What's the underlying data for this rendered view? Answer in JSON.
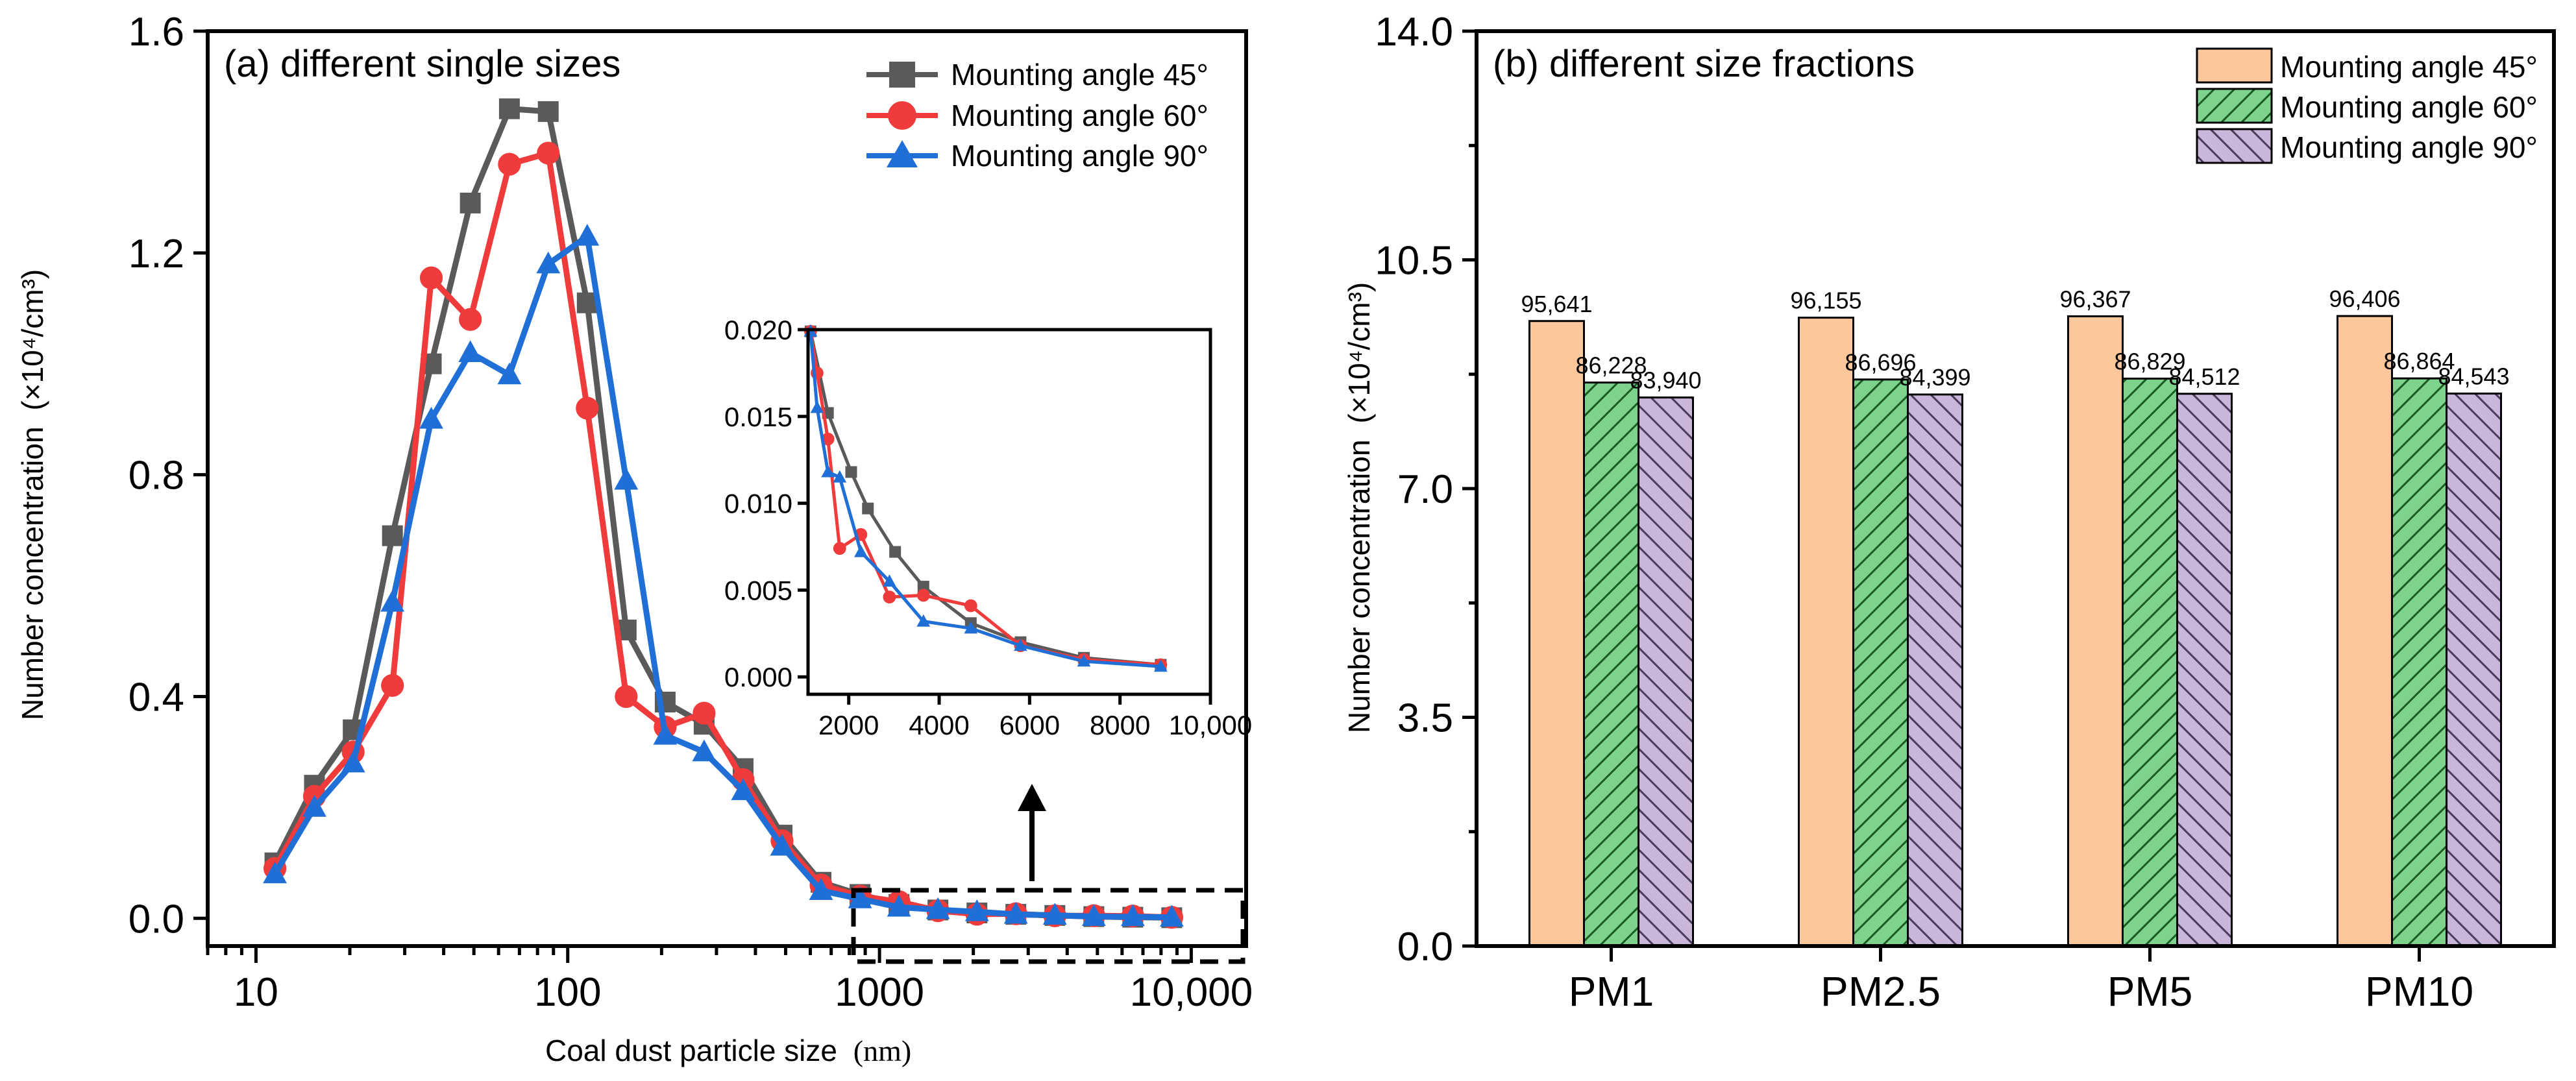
{
  "chart_data": [
    {
      "id": "a",
      "type": "line",
      "title": "(a) different single sizes",
      "xlabel": "Coal dust particle size",
      "xlabel_unit": "(nm)",
      "ylabel": "Number concentration",
      "ylabel_unit": "(×10⁴/cm³)",
      "xscale": "log",
      "xlim": [
        7,
        15000
      ],
      "ylim": [
        -0.05,
        1.6
      ],
      "yticks": [
        "0.0",
        "0.4",
        "0.8",
        "1.2",
        "1.6"
      ],
      "xticks": [
        "10",
        "100",
        "1000",
        "10,000"
      ],
      "legend_position": "top-right",
      "x": [
        11.5,
        15.4,
        20.5,
        27.4,
        36.5,
        48.7,
        65,
        86.6,
        115.5,
        154,
        205.4,
        273.8,
        365.2,
        486.9,
        649.4,
        866,
        1155,
        1540,
        2054,
        2738,
        3652,
        4870,
        6494,
        8660
      ],
      "series": [
        {
          "name": "Mounting angle 45°",
          "color": "#5a5a5a",
          "marker": "square",
          "values": [
            0.1,
            0.24,
            0.34,
            0.69,
            1.0,
            1.29,
            1.46,
            1.455,
            1.11,
            0.52,
            0.39,
            0.35,
            0.27,
            0.15,
            0.065,
            0.043,
            0.025,
            0.015,
            0.0097,
            0.0072,
            0.0052,
            0.0031,
            0.002,
            0.0011
          ]
        },
        {
          "name": "Mounting angle 60°",
          "color": "#ef3b3b",
          "marker": "circle",
          "values": [
            0.09,
            0.22,
            0.3,
            0.42,
            1.155,
            1.08,
            1.36,
            1.38,
            0.92,
            0.4,
            0.345,
            0.37,
            0.25,
            0.14,
            0.06,
            0.04,
            0.03,
            0.0137,
            0.0074,
            0.0082,
            0.0046,
            0.0047,
            0.0041,
            0.0018
          ]
        },
        {
          "name": "Mounting angle 90°",
          "color": "#1f6fd6",
          "marker": "triangle",
          "values": [
            0.08,
            0.2,
            0.28,
            0.57,
            0.9,
            1.02,
            0.98,
            1.18,
            1.23,
            0.79,
            0.33,
            0.3,
            0.23,
            0.13,
            0.05,
            0.035,
            0.02,
            0.0155,
            0.0118,
            0.0072,
            0.0055,
            0.0032,
            0.0028,
            0.0018
          ]
        }
      ],
      "inset": {
        "xlim": [
          1100,
          10000
        ],
        "ylim": [
          -0.001,
          0.02
        ],
        "xticks": [
          "2000",
          "4000",
          "6000",
          "8000",
          "10,000"
        ],
        "yticks": [
          "0.000",
          "0.005",
          "0.010",
          "0.015",
          "0.020"
        ],
        "series": [
          {
            "name": "Mounting angle 45°",
            "x": [
              1155,
              1540,
              2054,
              2424,
              3026,
              3652,
              4700,
              5800,
              7200,
              8900
            ],
            "values": [
              0.0199,
              0.0152,
              0.0118,
              0.0097,
              0.0072,
              0.0052,
              0.0031,
              0.002,
              0.0011,
              0.0007
            ]
          },
          {
            "name": "Mounting angle 60°",
            "x": [
              1155,
              1300,
              1540,
              1800,
              2268,
              2900,
              3652,
              4700,
              5800,
              7200,
              8900
            ],
            "values": [
              0.0199,
              0.0175,
              0.0137,
              0.0074,
              0.0082,
              0.0046,
              0.0047,
              0.0041,
              0.0018,
              0.001,
              0.0007
            ]
          },
          {
            "name": "Mounting angle 90°",
            "x": [
              1155,
              1300,
              1540,
              1800,
              2268,
              2900,
              3652,
              4700,
              5800,
              7200,
              8900
            ],
            "values": [
              0.0199,
              0.0155,
              0.0118,
              0.0115,
              0.0072,
              0.0055,
              0.0032,
              0.0028,
              0.0018,
              0.0009,
              0.0006
            ]
          }
        ]
      }
    },
    {
      "id": "b",
      "type": "bar",
      "title": "(b) different size fractions",
      "ylabel": "Number concentration",
      "ylabel_unit": "(×10⁴/cm³)",
      "ylim": [
        0,
        14.0
      ],
      "yticks": [
        "0.0",
        "3.5",
        "7.0",
        "10.5",
        "14.0"
      ],
      "categories": [
        "PM1",
        "PM2.5",
        "PM5",
        "PM10"
      ],
      "legend_position": "top-right",
      "series": [
        {
          "name": "Mounting angle 45°",
          "color": "#fdc79c",
          "pattern": "solid",
          "values": [
            9.5641,
            9.6155,
            9.6367,
            9.6406
          ],
          "labels": [
            "95,641",
            "96,155",
            "96,367",
            "96,406"
          ]
        },
        {
          "name": "Mounting angle 60°",
          "color": "#7dd38c",
          "pattern": "hatch-right",
          "values": [
            8.6228,
            8.6696,
            8.6829,
            8.6864
          ],
          "labels": [
            "86,228",
            "86,696",
            "86,829",
            "86,864"
          ]
        },
        {
          "name": "Mounting angle 90°",
          "color": "#c9b6da",
          "pattern": "hatch-left",
          "values": [
            8.394,
            8.4399,
            8.4512,
            8.4543
          ],
          "labels": [
            "83,940",
            "84,399",
            "84,512",
            "84,543"
          ]
        }
      ]
    }
  ]
}
